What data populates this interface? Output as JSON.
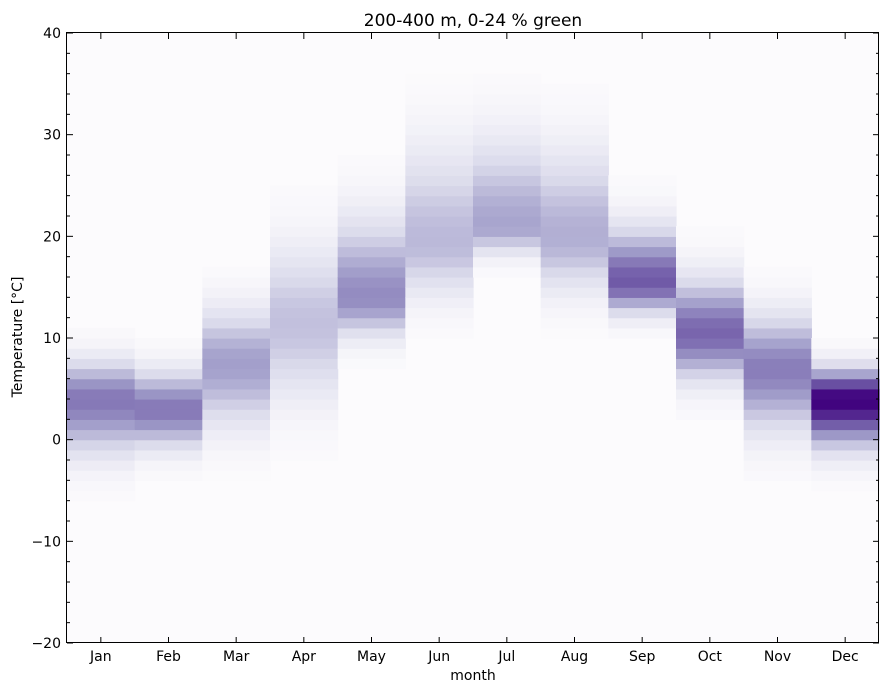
{
  "chart_data": {
    "type": "heatmap",
    "title": "200-400 m, 0-24 % green",
    "xlabel": "month",
    "ylabel": "Temperature [°C]",
    "categories": [
      "Jan",
      "Feb",
      "Mar",
      "Apr",
      "May",
      "Jun",
      "Jul",
      "Aug",
      "Sep",
      "Oct",
      "Nov",
      "Dec"
    ],
    "ylim": [
      -20,
      40
    ],
    "yticks": [
      -20,
      -10,
      0,
      10,
      20,
      30,
      40
    ],
    "ytick_labels": [
      "−20",
      "−10",
      "0",
      "10",
      "20",
      "30",
      "40"
    ],
    "bin_size": 1,
    "colormap": [
      "#fcfbfd",
      "#dadaeb",
      "#9e9ac8",
      "#6a51a3",
      "#3f007d"
    ],
    "profiles": [
      {
        "month": "Jan",
        "center": 4.0,
        "sd_low": 3.5,
        "sd_high": 2.5,
        "peak": 0.62
      },
      {
        "month": "Feb",
        "center": 3.0,
        "sd_low": 2.5,
        "sd_high": 2.5,
        "peak": 0.62
      },
      {
        "month": "Mar",
        "center": 7.5,
        "sd_low": 4.0,
        "sd_high": 3.5,
        "peak": 0.48
      },
      {
        "month": "Apr",
        "center": 11.5,
        "sd_low": 5.0,
        "sd_high": 5.0,
        "peak": 0.35
      },
      {
        "month": "May",
        "center": 14.0,
        "sd_low": 2.5,
        "sd_high": 5.0,
        "peak": 0.55
      },
      {
        "month": "Jun",
        "center": 19.5,
        "sd_low": 3.5,
        "sd_high": 6.0,
        "peak": 0.38
      },
      {
        "month": "Jul",
        "center": 21.0,
        "sd_low": 1.8,
        "sd_high": 5.5,
        "peak": 0.46
      },
      {
        "month": "Aug",
        "center": 20.0,
        "sd_low": 3.5,
        "sd_high": 5.5,
        "peak": 0.42
      },
      {
        "month": "Sep",
        "center": 15.5,
        "sd_low": 2.0,
        "sd_high": 3.5,
        "peak": 0.72
      },
      {
        "month": "Oct",
        "center": 10.5,
        "sd_low": 3.0,
        "sd_high": 3.5,
        "peak": 0.68
      },
      {
        "month": "Nov",
        "center": 7.0,
        "sd_low": 4.0,
        "sd_high": 3.5,
        "peak": 0.6
      },
      {
        "month": "Dec",
        "center": 4.0,
        "sd_low": 3.0,
        "sd_high": 2.0,
        "peak": 1.0
      }
    ],
    "grid": false
  }
}
